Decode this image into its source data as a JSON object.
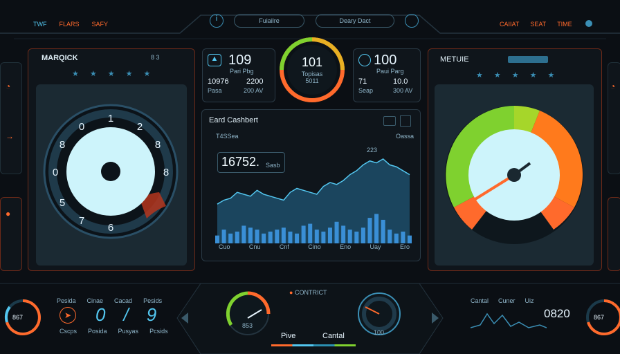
{
  "top": {
    "left_tabs": [
      "TWF",
      "FLARS",
      "SAFY"
    ],
    "center_label": "Fuiailre",
    "center_right_label": "Deary Dact",
    "right_tabs": [
      "CAIIAT",
      "SEAT",
      "TIME"
    ]
  },
  "left_panel": {
    "title": "MARQICK",
    "title_right": "8 3",
    "dial_labels": [
      "0",
      "1",
      "2",
      "8",
      "8",
      "6",
      "7",
      "8",
      "0",
      "5"
    ]
  },
  "stat_left": {
    "value": "109",
    "unit": "Pari Pbg",
    "a": "10976",
    "b": "2200",
    "a_label": "Pasa",
    "b_label": "200 AV"
  },
  "center_ring": {
    "value": "101",
    "label": "Topisas",
    "sub": "5011"
  },
  "stat_right": {
    "value": "100",
    "unit": "Paui Parg",
    "a": "71",
    "b": "10.0",
    "a_label": "Seap",
    "b_label": "300 AV"
  },
  "chart_panel": {
    "title": "Eard Cashbert",
    "legend_left": "T4SSea",
    "legend_right": "Oassa",
    "callout_value": "16752.",
    "callout_unit": "Sasb",
    "peak_label": "223",
    "labels": [
      "Cuo",
      "Cnu",
      "Cnf",
      "Cino",
      "Eno",
      "Uay",
      "Ero"
    ]
  },
  "chart_data": {
    "type": "area",
    "x": [
      1,
      2,
      3,
      4,
      5,
      6,
      7,
      8,
      9,
      10,
      11,
      12,
      13,
      14,
      15,
      16,
      17,
      18,
      19,
      20,
      21,
      22,
      23,
      24,
      25,
      26,
      27,
      28,
      29,
      30
    ],
    "series": [
      {
        "values": [
          40,
          44,
          46,
          52,
          50,
          48,
          54,
          50,
          48,
          46,
          44,
          52,
          56,
          54,
          52,
          50,
          58,
          62,
          60,
          64,
          70,
          74,
          80,
          84,
          82,
          86,
          80,
          78,
          74,
          70
        ]
      },
      {
        "values": [
          8,
          14,
          10,
          12,
          18,
          16,
          14,
          10,
          12,
          14,
          16,
          12,
          10,
          18,
          20,
          14,
          12,
          16,
          22,
          18,
          14,
          12,
          16,
          26,
          30,
          24,
          14,
          10,
          12,
          8
        ]
      }
    ],
    "ylim": [
      0,
      100
    ]
  },
  "right_panel": {
    "title": "METUIE"
  },
  "bottom": {
    "left_gauge_value": "867",
    "labels_row1": [
      "Pesida",
      "Cinae",
      "Cacad",
      "Pesids"
    ],
    "labels_row2": [
      "Cscps",
      "Posida",
      "Pusyas",
      "Pcsids"
    ],
    "big_numbers": [
      "0",
      "/",
      "9"
    ],
    "center_title": "CONTRICT",
    "left_mini_value": "853",
    "right_mini_value": "100",
    "pive": "Pive",
    "cantal": "Cantal",
    "right_labels": [
      "Cantal",
      "Cuner",
      "Uiz"
    ],
    "right_number": "0820",
    "right_gauge_value": "867"
  },
  "colors": {
    "accent": "#53c6ef",
    "warn": "#ff6a2c",
    "good": "#7fd12f"
  }
}
